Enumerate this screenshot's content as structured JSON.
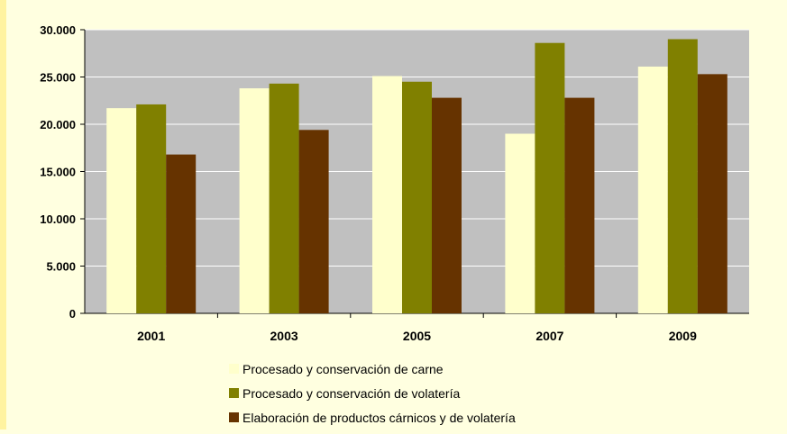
{
  "chart_data": {
    "type": "bar",
    "title": "",
    "xlabel": "",
    "ylabel": "",
    "categories": [
      "2001",
      "2003",
      "2005",
      "2007",
      "2009"
    ],
    "ylim": [
      0,
      30000
    ],
    "yticks": [
      0,
      5000,
      10000,
      15000,
      20000,
      25000,
      30000
    ],
    "ytick_labels": [
      "0",
      "5.000",
      "10.000",
      "15.000",
      "20.000",
      "25.000",
      "30.000"
    ],
    "grid": true,
    "legend_position": "bottom",
    "series": [
      {
        "name": "Procesado y conservación de carne",
        "color": "#ffffcc",
        "values": [
          21700,
          23800,
          25100,
          19000,
          26100
        ]
      },
      {
        "name": "Procesado y conservación de volatería",
        "color": "#808000",
        "values": [
          22100,
          24300,
          24500,
          28600,
          29000
        ]
      },
      {
        "name": "Elaboración de productos cárnicos y de volatería",
        "color": "#663300",
        "values": [
          16800,
          19400,
          22800,
          22800,
          25300
        ]
      }
    ],
    "plot_background": "#c0c0c0"
  }
}
